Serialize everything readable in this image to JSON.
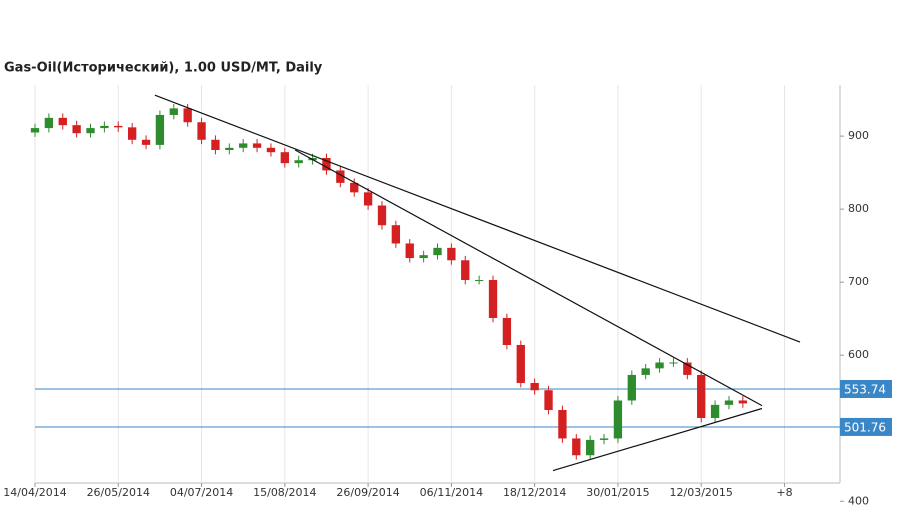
{
  "chart_data": {
    "type": "candlestick",
    "title": "Gas-Oil(Исторический), 1.00 USD/MT, Daily",
    "x": [
      0,
      5,
      10,
      15,
      20,
      25,
      30,
      35,
      40,
      45,
      50,
      55,
      60,
      65,
      70,
      75,
      80,
      85,
      90,
      95,
      100,
      105,
      110,
      115,
      120,
      125,
      130,
      135,
      140,
      145,
      150,
      155,
      160,
      165,
      170,
      175,
      180,
      185,
      190,
      195,
      200,
      205,
      210,
      215,
      220,
      225,
      230,
      235,
      240,
      245,
      250,
      255
    ],
    "open": [
      905,
      911,
      925,
      915,
      904,
      911,
      914,
      912,
      895,
      888,
      929,
      938,
      919,
      895,
      881,
      884,
      890,
      884,
      878,
      863,
      867,
      870,
      853,
      836,
      823,
      805,
      778,
      753,
      733,
      737,
      747,
      730,
      703,
      703,
      651,
      614,
      562,
      552,
      525,
      486,
      463,
      484,
      486,
      538,
      573,
      582,
      590,
      590,
      573,
      514,
      532,
      538
    ],
    "high": [
      917,
      931,
      931,
      921,
      917,
      920,
      920,
      918,
      901,
      935,
      944,
      944,
      925,
      901,
      890,
      896,
      896,
      890,
      884,
      873,
      876,
      876,
      859,
      842,
      829,
      811,
      784,
      759,
      743,
      753,
      753,
      736,
      709,
      709,
      657,
      620,
      568,
      558,
      531,
      492,
      490,
      492,
      544,
      579,
      588,
      596,
      596,
      596,
      579,
      538,
      544,
      544
    ],
    "low": [
      899,
      905,
      909,
      898,
      898,
      905,
      906,
      889,
      882,
      882,
      923,
      913,
      889,
      875,
      875,
      878,
      878,
      872,
      857,
      857,
      861,
      847,
      830,
      817,
      799,
      772,
      747,
      727,
      727,
      731,
      724,
      697,
      697,
      645,
      608,
      556,
      546,
      519,
      480,
      457,
      457,
      478,
      480,
      532,
      567,
      576,
      584,
      567,
      508,
      508,
      526,
      528
    ],
    "close": [
      911,
      925,
      915,
      904,
      911,
      914,
      912,
      895,
      888,
      929,
      938,
      919,
      895,
      881,
      884,
      890,
      884,
      878,
      863,
      867,
      870,
      853,
      836,
      823,
      805,
      778,
      753,
      733,
      737,
      747,
      730,
      703,
      703,
      651,
      614,
      562,
      552,
      525,
      486,
      463,
      484,
      486,
      538,
      573,
      582,
      590,
      590,
      573,
      514,
      532,
      538,
      534
    ],
    "up_color": "#2e8b2e",
    "down_color": "#d42020",
    "xlim": [
      0,
      290
    ],
    "xticks": [
      {
        "value": 0,
        "label": "14/04/2014"
      },
      {
        "value": 30,
        "label": "26/05/2014"
      },
      {
        "value": 60,
        "label": "04/07/2014"
      },
      {
        "value": 90,
        "label": "15/08/2014"
      },
      {
        "value": 120,
        "label": "26/09/2014"
      },
      {
        "value": 150,
        "label": "06/11/2014"
      },
      {
        "value": 180,
        "label": "18/12/2014"
      },
      {
        "value": 210,
        "label": "30/01/2015"
      },
      {
        "value": 240,
        "label": "12/03/2015"
      },
      {
        "value": 270,
        "label": "+8"
      }
    ],
    "ylim": [
      425,
      970
    ],
    "yticks": [
      400,
      600,
      700,
      800,
      900
    ],
    "grid": true,
    "levels": [
      553.74,
      501.76
    ],
    "level_color": "#3a87c8",
    "trendlines": [
      {
        "x": [
          43.2,
          275.6
        ],
        "y": [
          956,
          618
        ]
      },
      {
        "x": [
          93.7,
          261.9
        ],
        "y": [
          881,
          531
        ]
      },
      {
        "x": [
          186.6,
          261.9
        ],
        "y": [
          442,
          527
        ]
      }
    ]
  }
}
